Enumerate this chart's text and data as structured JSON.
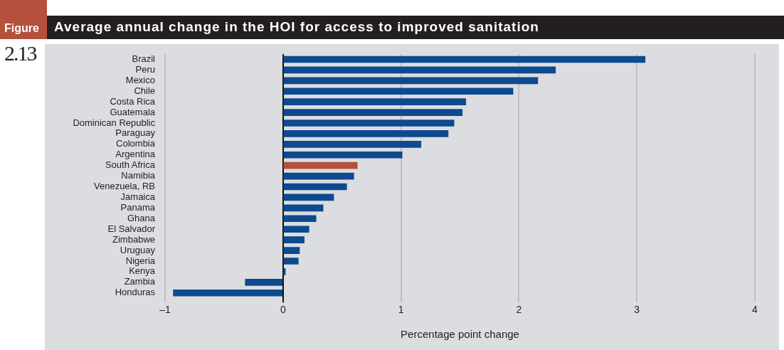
{
  "chart_data": {
    "type": "bar",
    "orientation": "horizontal",
    "title": "Average annual change in the HOI for access to improved sanitation",
    "annotations": [
      "Figure",
      "2.13"
    ],
    "xlabel": "Percentage point change",
    "categories": [
      "Brazil",
      "Peru",
      "Mexico",
      "Chile",
      "Costa Rica",
      "Guatemala",
      "Dominican Republic",
      "Paraguay",
      "Colombia",
      "Argentina",
      "South Africa",
      "Namibia",
      "Venezuela, RB",
      "Jamaica",
      "Panama",
      "Ghana",
      "El Salvador",
      "Zimbabwe",
      "Uruguay",
      "Nigeria",
      "Kenya",
      "Zambia",
      "Honduras"
    ],
    "values": [
      3.07,
      2.31,
      2.16,
      1.95,
      1.55,
      1.52,
      1.45,
      1.4,
      1.17,
      1.01,
      0.63,
      0.6,
      0.54,
      0.43,
      0.34,
      0.28,
      0.22,
      0.18,
      0.14,
      0.13,
      0.02,
      -0.32,
      -0.93
    ],
    "colors": [
      "#0d4a8f",
      "#0d4a8f",
      "#0d4a8f",
      "#0d4a8f",
      "#0d4a8f",
      "#0d4a8f",
      "#0d4a8f",
      "#0d4a8f",
      "#0d4a8f",
      "#0d4a8f",
      "#b5503c",
      "#0d4a8f",
      "#0d4a8f",
      "#0d4a8f",
      "#0d4a8f",
      "#0d4a8f",
      "#0d4a8f",
      "#0d4a8f",
      "#0d4a8f",
      "#0d4a8f",
      "#0d4a8f",
      "#0d4a8f",
      "#0d4a8f"
    ],
    "xlim": [
      -1,
      4
    ],
    "xticks": [
      {
        "value": -1,
        "label": "–1"
      },
      0,
      1,
      2,
      3,
      4
    ],
    "grid": "x",
    "legend": false
  }
}
